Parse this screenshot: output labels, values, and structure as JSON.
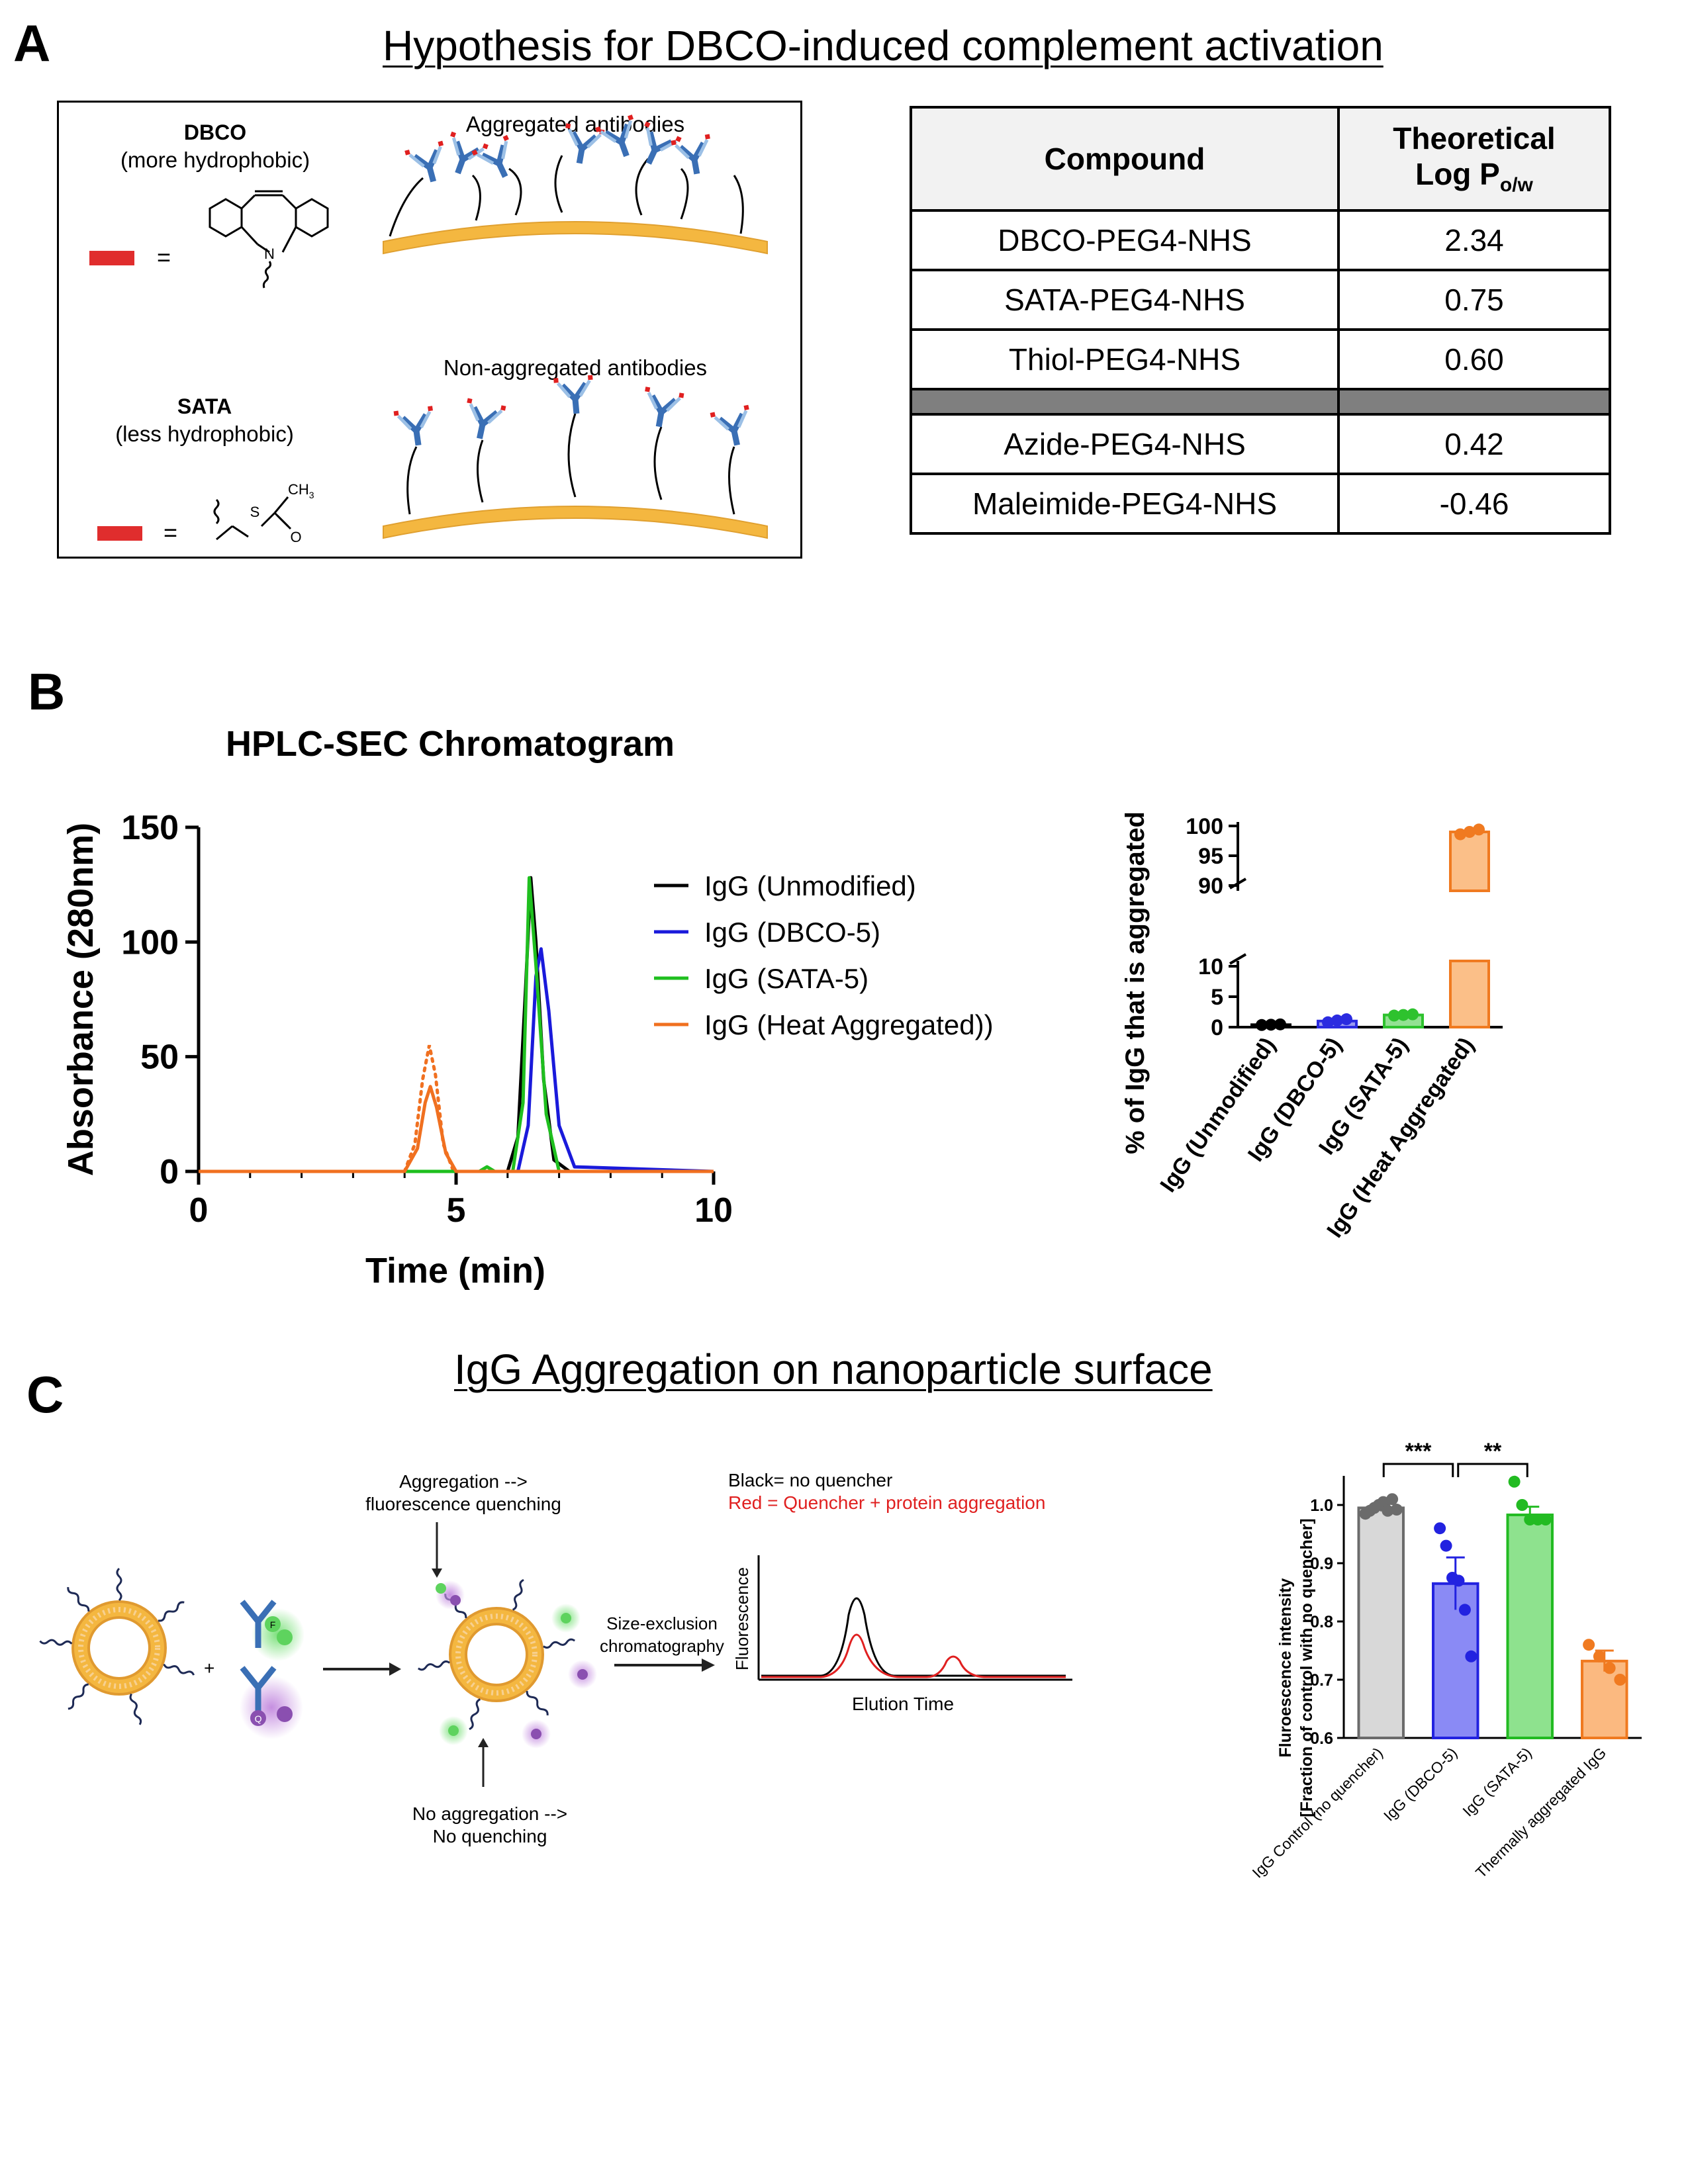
{
  "panelA": {
    "letter": "A",
    "title": "Hypothesis for DBCO-induced complement activation",
    "schematic": {
      "dbco_name": "DBCO",
      "dbco_desc": "(more hydrophobic)",
      "aggregated_label": "Aggregated antibodies",
      "sata_name": "SATA",
      "sata_desc": "(less hydrophobic)",
      "nonaggregated_label": "Non-aggregated antibodies",
      "equals": "=",
      "n_atom": "N",
      "s_atom": "S",
      "o_atom": "O",
      "ch3": "CH",
      "ch3_sub": "3"
    },
    "table": {
      "col1": "Compound",
      "col2_line1": "Theoretical",
      "col2_line2": "Log P",
      "col2_sub": "o/w",
      "rows": [
        {
          "compound": "DBCO-PEG4-NHS",
          "logp": "2.34"
        },
        {
          "compound": "SATA-PEG4-NHS",
          "logp": "0.75"
        },
        {
          "compound": "Thiol-PEG4-NHS",
          "logp": "0.60"
        },
        {
          "compound": "Azide-PEG4-NHS",
          "logp": "0.42"
        },
        {
          "compound": "Maleimide-PEG4-NHS",
          "logp": "-0.46"
        }
      ]
    }
  },
  "panelB": {
    "letter": "B",
    "chart_data": [
      {
        "type": "line",
        "title": "HPLC-SEC Chromatogram",
        "xlabel": "Time (min)",
        "ylabel": "Absorbance (280nm)",
        "xlim": [
          0,
          10
        ],
        "ylim": [
          0,
          150
        ],
        "xticks": [
          "0",
          "5",
          "10"
        ],
        "yticks": [
          "0",
          "50",
          "100",
          "150"
        ],
        "legend_position": "top-right",
        "series": [
          {
            "name": "IgG (Unmodified)",
            "color": "#000000",
            "x": [
              0,
              6.0,
              6.2,
              6.35,
              6.45,
              6.55,
              6.7,
              6.9,
              7.2,
              10
            ],
            "y": [
              0,
              0,
              15,
              80,
              128,
              100,
              40,
              5,
              0,
              0
            ]
          },
          {
            "name": "IgG (DBCO-5)",
            "color": "#1a1adb",
            "x": [
              0,
              6.2,
              6.4,
              6.55,
              6.65,
              6.8,
              7.0,
              7.3,
              10
            ],
            "y": [
              0,
              0,
              20,
              85,
              97,
              70,
              20,
              2,
              0
            ]
          },
          {
            "name": "IgG (SATA-5)",
            "color": "#1fbf1f",
            "x": [
              0,
              5.45,
              5.6,
              5.75,
              6.1,
              6.3,
              6.42,
              6.55,
              6.75,
              7.0,
              10
            ],
            "y": [
              0,
              0,
              2,
              0,
              0,
              30,
              128,
              90,
              25,
              0,
              0
            ]
          },
          {
            "name": "IgG (Heat Aggregated))",
            "color": "#f07020",
            "x": [
              0,
              4.0,
              4.25,
              4.4,
              4.5,
              4.62,
              4.8,
              5.0,
              10
            ],
            "y": [
              0,
              0,
              10,
              30,
              37,
              28,
              8,
              0,
              0
            ]
          }
        ],
        "replicate_dotted": {
          "color": "#f07020",
          "x": [
            4.0,
            4.2,
            4.35,
            4.48,
            4.6,
            4.75,
            4.95
          ],
          "y": [
            0,
            12,
            40,
            55,
            42,
            12,
            0
          ]
        }
      },
      {
        "type": "bar",
        "ylabel": "% of IgG that is aggregated",
        "categories": [
          "IgG (Unmodified)",
          "IgG (DBCO-5)",
          "IgG (SATA-5)",
          "IgG (Heat Aggregated)"
        ],
        "values": [
          0.4,
          1.0,
          2.0,
          99.0
        ],
        "errors": [
          0.1,
          0.3,
          0.15,
          0.6
        ],
        "points": [
          [
            0.35,
            0.4,
            0.45
          ],
          [
            0.8,
            1.1,
            1.3
          ],
          [
            1.9,
            2.0,
            2.1
          ],
          [
            98.6,
            99.0,
            99.4
          ]
        ],
        "colors": [
          "#000000",
          "#2b2be0",
          "#2ec22e",
          "#f07a20"
        ],
        "fill_colors": [
          "#555555",
          "#9a9af0",
          "#93e193",
          "#fbbf88"
        ],
        "broken_axis": {
          "lower": [
            0,
            10
          ],
          "upper": [
            90,
            100
          ]
        },
        "yticks_lower": [
          "0",
          "5",
          "10"
        ],
        "yticks_upper": [
          "90",
          "95",
          "100"
        ]
      }
    ]
  },
  "panelC": {
    "letter": "C",
    "title": "IgG Aggregation on nanoparticle surface",
    "schematic": {
      "plus": "+",
      "aggregation_label_1": "Aggregation -->",
      "aggregation_label_2": "fluorescence quenching",
      "noagg_label_1": "No aggregation -->",
      "noagg_label_2": "No quenching",
      "sec_label_1": "Size-exclusion",
      "sec_label_2": "chromatography",
      "legend_black": "Black= no quencher",
      "legend_red": "Red = Quencher + protein aggregation",
      "fluor_ylabel": "Fluorescence",
      "fluor_xlabel": "Elution Time",
      "f_letter": "F",
      "q_letter": "Q"
    },
    "chart_data": {
      "type": "bar",
      "ylabel_line1": "Fluroescence intensity",
      "ylabel_line2": "[Fraction of control with no quencher]",
      "ylim": [
        0.6,
        1.05
      ],
      "yticks": [
        "0.6",
        "0.7",
        "0.8",
        "0.9",
        "1.0"
      ],
      "categories": [
        "IgG Control (no quencher)",
        "IgG (DBCO-5)",
        "IgG (SATA-5)",
        "Thermally aggregated IgG"
      ],
      "values": [
        0.995,
        0.865,
        0.983,
        0.732
      ],
      "errors": [
        0.006,
        0.045,
        0.014,
        0.018
      ],
      "points": [
        [
          0.985,
          0.99,
          0.995,
          1.0,
          1.005,
          0.99,
          1.01,
          0.992
        ],
        [
          0.96,
          0.93,
          0.875,
          0.87,
          0.82,
          0.74
        ],
        [
          1.04,
          1.0,
          0.975,
          0.975,
          0.975
        ],
        [
          0.76,
          0.74,
          0.72,
          0.7
        ]
      ],
      "colors": [
        "#6b6b6b",
        "#2222e0",
        "#22bb22",
        "#f07a20"
      ],
      "fill_colors": [
        "#d8d8d8",
        "#8a8af5",
        "#8ee28e",
        "#fbb980"
      ],
      "significance": [
        {
          "from": 0,
          "to": 1,
          "label": "***"
        },
        {
          "from": 1,
          "to": 2,
          "label": "**"
        }
      ]
    }
  }
}
